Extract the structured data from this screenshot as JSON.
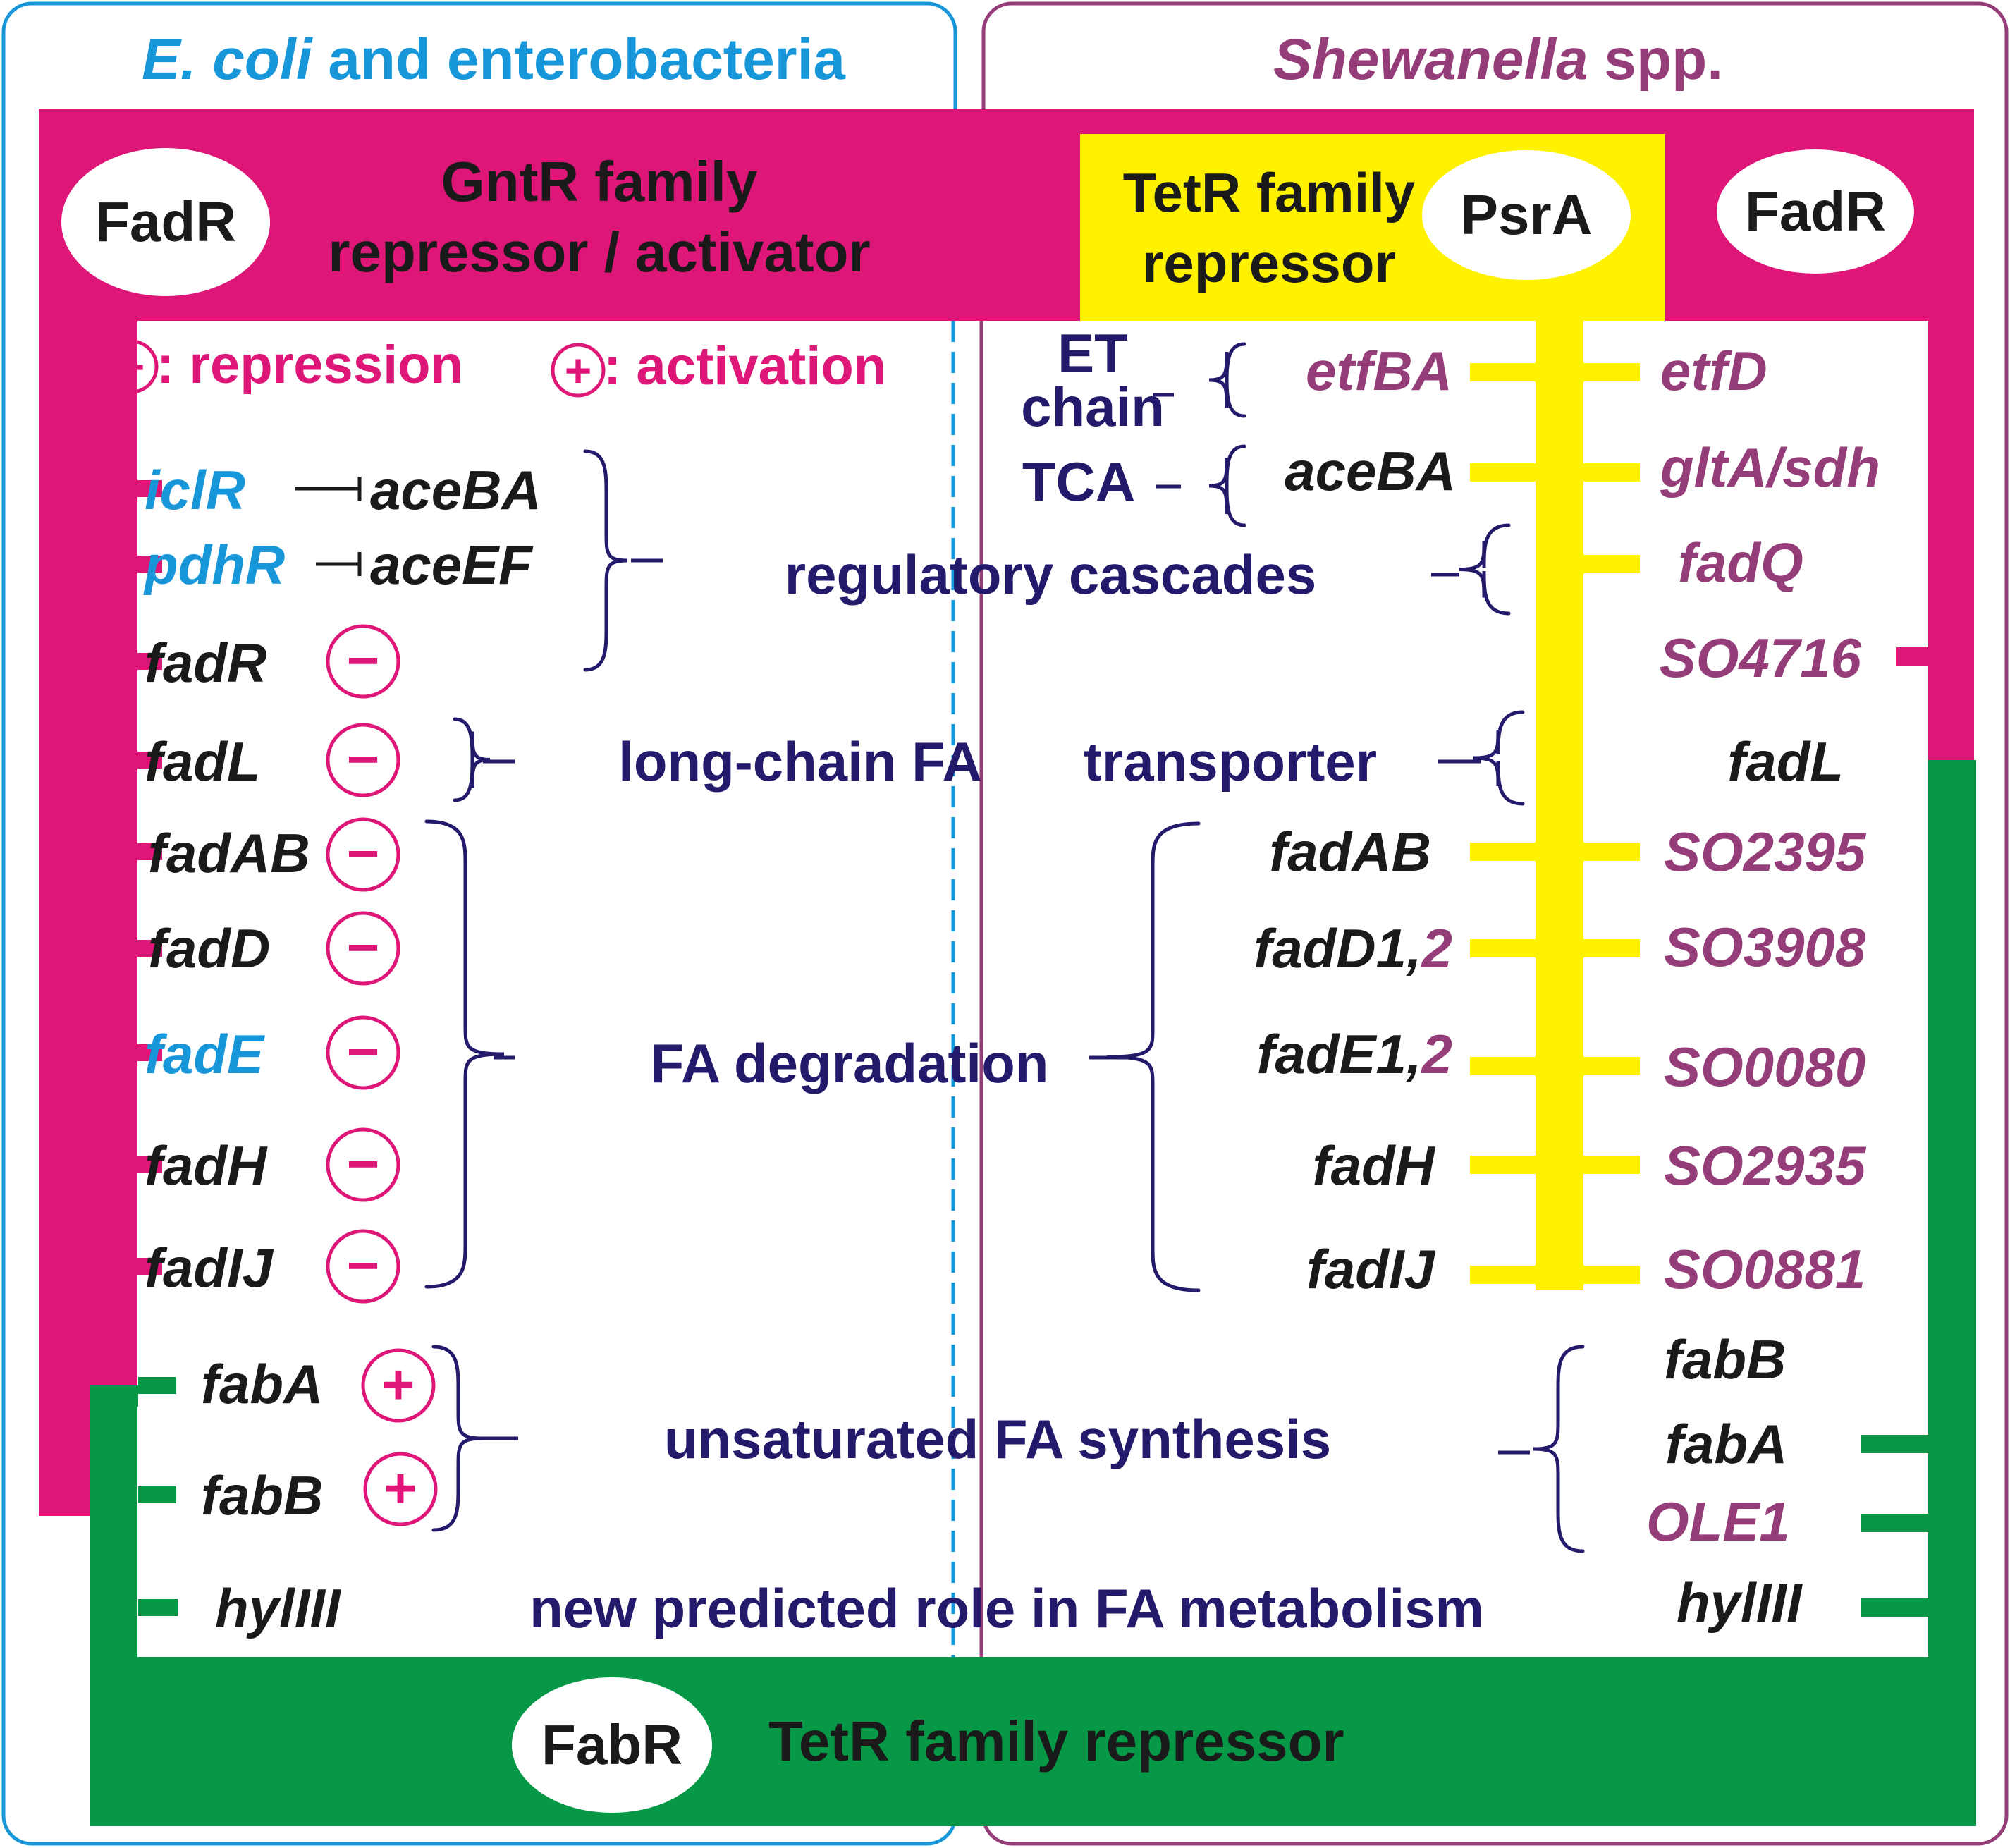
{
  "colors": {
    "magenta": "#de1678",
    "green": "#079847",
    "yellow": "#fff200",
    "cyan": "#1797d9",
    "purple": "#953d79",
    "navy": "#231a6b",
    "black": "#1a1a1a"
  },
  "panels": {
    "left_title_italic": "E. coli",
    "left_title_rest": " and enterobacteria",
    "right_title_italic": "Shewanella",
    "right_title_rest": " spp."
  },
  "regulators": {
    "fadr_left": "FadR",
    "fadr_right": "FadR",
    "psra": "PsrA",
    "fabr": "FabR",
    "gntr_line1": "GntR family",
    "gntr_line2": "repressor / activator",
    "tetr_line1": "TetR family",
    "tetr_line2": "repressor",
    "fabr_desc": "TetR family repressor"
  },
  "legend": {
    "minus_symbol": "−",
    "repression": ": repression",
    "plus_symbol": "+",
    "activation": ": activation"
  },
  "categories": {
    "et_line1": "ET",
    "et_line2": "chain",
    "tca": "TCA",
    "regulatory": "regulatory cascades",
    "transport_a": "long-chain FA",
    "transport_b": "transporter",
    "degradation": "FA degradation",
    "ufa_synthesis": "unsaturated FA synthesis",
    "new_role": "new predicted role in FA metabolism"
  },
  "ecoli_genes": {
    "iclR": "iclR",
    "aceBA": "aceBA",
    "pdhR": "pdhR",
    "aceEF": "aceEF",
    "fadR": "fadR",
    "fadL": "fadL",
    "fadAB": "fadAB",
    "fadD": "fadD",
    "fadE": "fadE",
    "fadH": "fadH",
    "fadIJ": "fadIJ",
    "fabA": "fabA",
    "fabB": "fabB",
    "hylIII": "hylIII"
  },
  "psra_genes": {
    "etfBA": "etfBA",
    "aceBA": "aceBA",
    "fadAB": "fadAB",
    "fadD12": "fadD1,",
    "fadD12_2": "2",
    "fadE12": "fadE1,",
    "fadE12_2": "2",
    "fadH": "fadH",
    "fadIJ": "fadIJ"
  },
  "shew_genes": {
    "etfD": "etfD",
    "gltA_sdh": "gltA/sdh",
    "fadQ": "fadQ",
    "SO4716": "SO4716",
    "fadL": "fadL",
    "SO2395": "SO2395",
    "SO3908": "SO3908",
    "SO0080": "SO0080",
    "SO2935": "SO2935",
    "SO0881": "SO0881",
    "fabB": "fabB",
    "fabA": "fabA",
    "OLE1": "OLE1",
    "hylIII": "hylIII"
  }
}
